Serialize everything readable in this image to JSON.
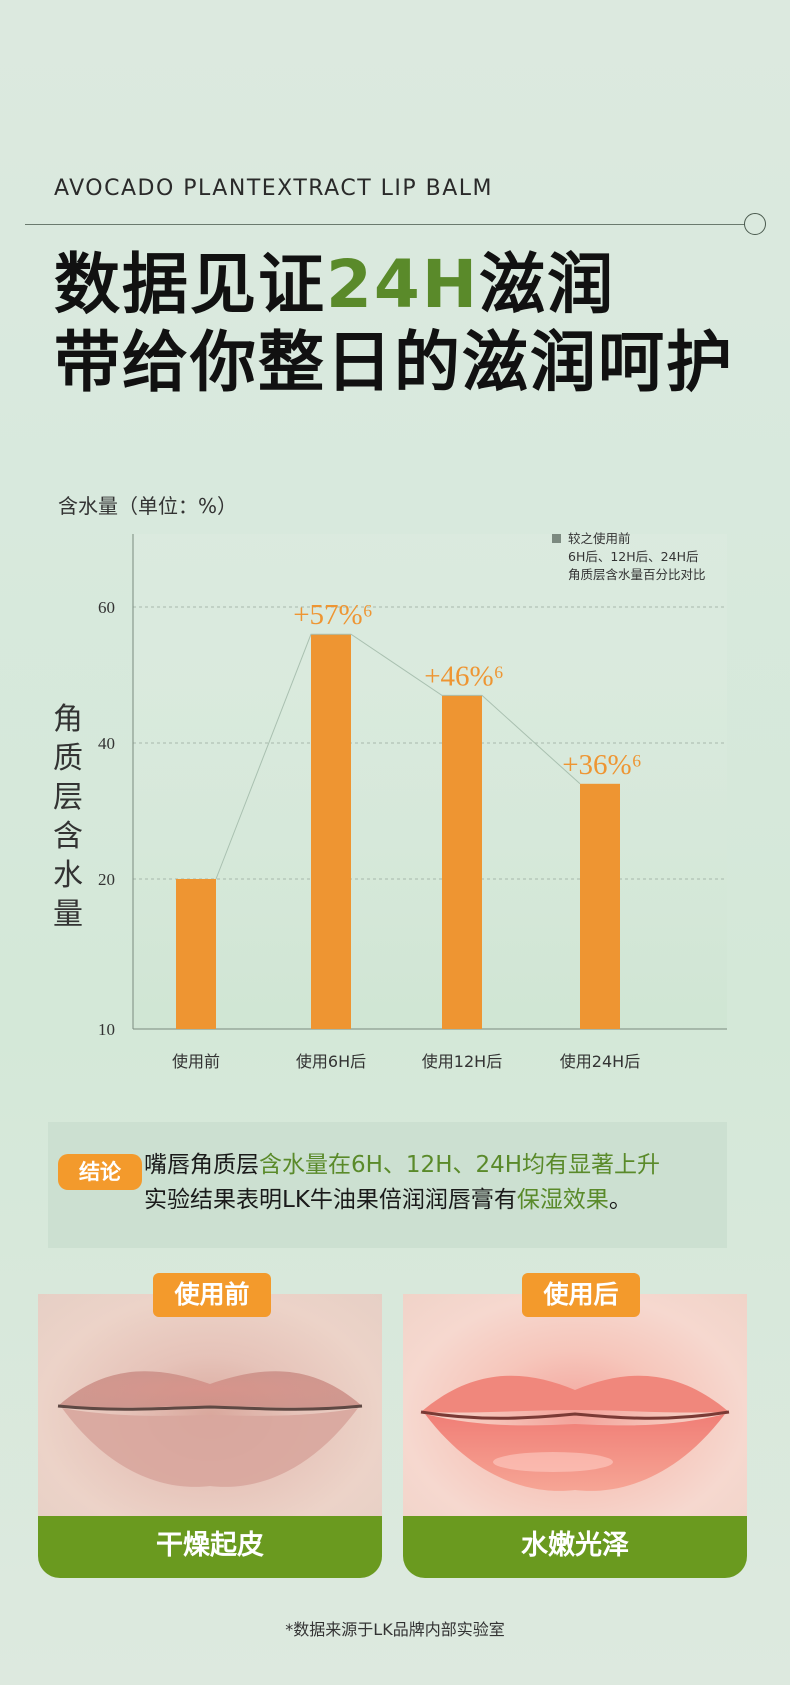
{
  "header": {
    "subtitle_en": "AVOCADO PLANTEXTRACT LIP BALM",
    "headline_line1_a": "数据见证",
    "headline_line1_b": "24H",
    "headline_line1_c": "滋润",
    "headline_line2": "带给你整日的滋润呵护"
  },
  "chart_caption": "含水量（单位：%）",
  "y_axis_label": "角质层含水量",
  "legend": {
    "line1": "较之使用前",
    "line2": "6H后、12H后、24H后",
    "line3": "角质层含水量百分比对比"
  },
  "chart_data": {
    "type": "bar",
    "categories": [
      "使用前",
      "使用6H后",
      "使用12H后",
      "使用24H后"
    ],
    "values": [
      20,
      56,
      47,
      34
    ],
    "data_labels": [
      "",
      "+57%⁶",
      "+46%⁶",
      "+36%⁶"
    ],
    "ylabel": "角质层含水量",
    "y_ticks": [
      10,
      20,
      40,
      60
    ],
    "bar_color": "#ee9532",
    "label_color": "#ee9532",
    "grid": true
  },
  "conclusion": {
    "badge": "结论",
    "line1_a": "嘴唇角质层",
    "line1_b": "含水量在6H、12H、24H均有显著上升",
    "line2_a": "实验结果表明LK牛油果倍润润唇膏有",
    "line2_b": "保湿效果",
    "line2_c": "。"
  },
  "comparison": {
    "before_tag": "使用前",
    "after_tag": "使用后",
    "before_caption": "干燥起皮",
    "after_caption": "水嫩光泽"
  },
  "footnote": "*数据来源于LK品牌内部实验室",
  "colors": {
    "accent_green": "#5a8a2a",
    "accent_orange": "#f39a2c",
    "caption_green": "#6a9a1f"
  }
}
